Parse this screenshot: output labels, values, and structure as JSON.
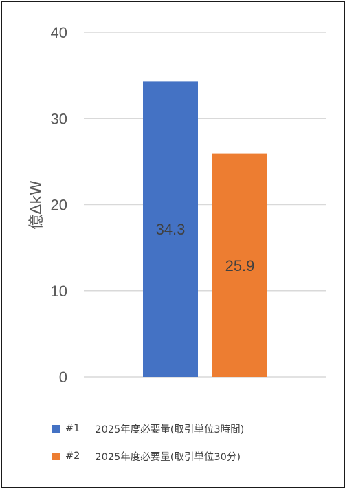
{
  "chart_data": {
    "type": "bar",
    "categories": [
      "#1",
      "#2"
    ],
    "values": [
      34.3,
      25.9
    ],
    "data_labels": [
      "34.3",
      "25.9"
    ],
    "colors": [
      "#4472c4",
      "#ed7d31"
    ],
    "title": "",
    "xlabel": "",
    "ylabel": "億ΔkW",
    "ylim": [
      0,
      40
    ],
    "yticks": [
      "0",
      "10",
      "20",
      "30",
      "40"
    ],
    "grid": true,
    "legend_position": "bottom",
    "legend": [
      {
        "code": "#1",
        "text": "2025年度必要量(取引単位3時間)"
      },
      {
        "code": "#2",
        "text": "2025年度必要量(取引単位30分)"
      }
    ]
  }
}
